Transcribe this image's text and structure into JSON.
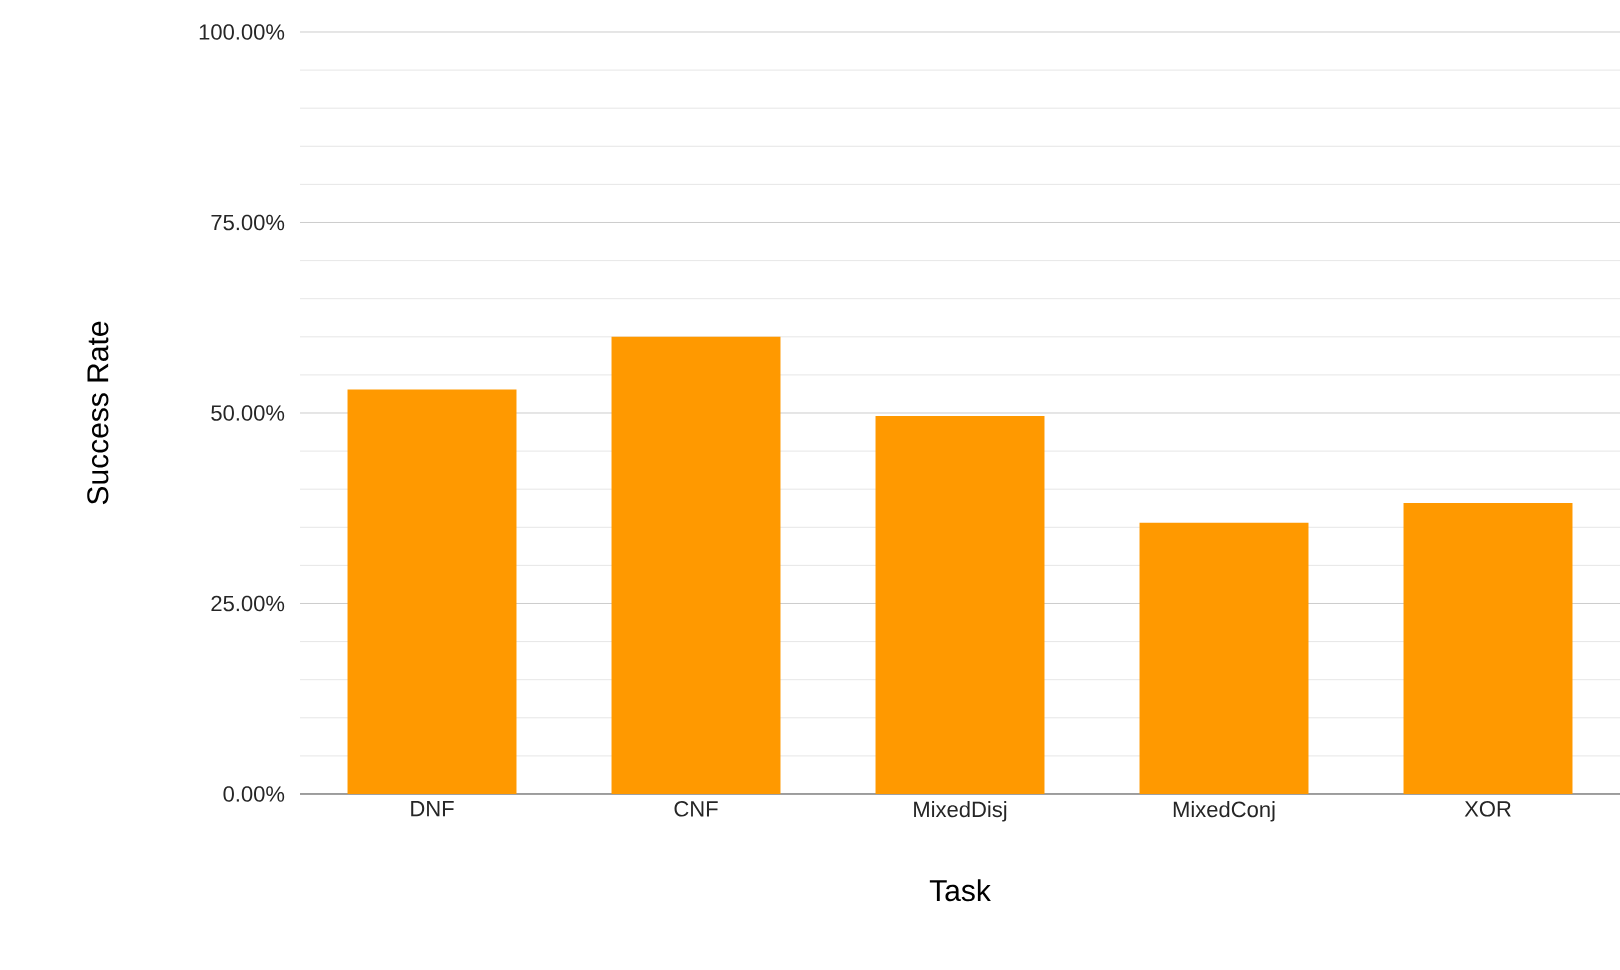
{
  "chart_data": {
    "type": "bar",
    "xlabel": "Task",
    "ylabel": "Success Rate",
    "categories": [
      "DNF",
      "CNF",
      "MixedDisj",
      "MixedConj",
      "XOR"
    ],
    "values": [
      53.1,
      60.0,
      49.6,
      35.6,
      38.2
    ],
    "color": "#ff9900",
    "ylim": [
      0,
      100
    ],
    "yticks": [
      {
        "value": 0,
        "label": "0.00%"
      },
      {
        "value": 25,
        "label": "25.00%"
      },
      {
        "value": 50,
        "label": "50.00%"
      },
      {
        "value": 75,
        "label": "75.00%"
      },
      {
        "value": 100,
        "label": "100.00%"
      }
    ],
    "grid": "y"
  }
}
